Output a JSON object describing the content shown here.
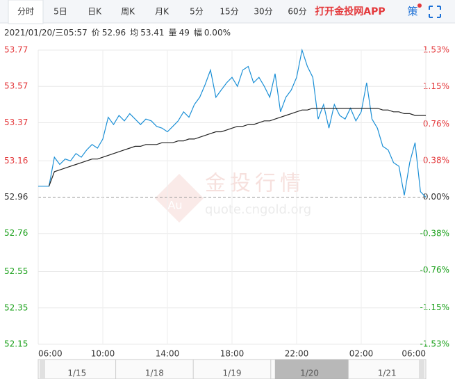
{
  "toolbar": {
    "tabs": [
      "分时",
      "5日",
      "日K",
      "周K",
      "月K",
      "5分",
      "15分",
      "30分",
      "60分"
    ],
    "active_tab": 0,
    "app_link": "打开金投网APP",
    "strategy": "策"
  },
  "info": {
    "datetime": "2021/01/20/三05:57",
    "price_label": "价",
    "price": 52.96,
    "avg_label": "均",
    "avg": 53.41,
    "volume_label": "量",
    "volume": 49,
    "change_label": "幅",
    "change": "0.00%"
  },
  "watermark": {
    "brand": "金投行情",
    "url": "quote.cngold.org",
    "logo": "Au"
  },
  "chart_data": {
    "type": "line",
    "categories": [
      "06:00",
      null,
      null,
      null,
      null,
      null,
      null,
      null,
      null,
      null,
      null,
      null,
      "10:00",
      null,
      null,
      null,
      null,
      null,
      null,
      null,
      null,
      null,
      null,
      null,
      "14:00",
      null,
      null,
      null,
      null,
      null,
      null,
      null,
      null,
      null,
      null,
      null,
      "18:00",
      null,
      null,
      null,
      null,
      null,
      null,
      null,
      null,
      null,
      null,
      null,
      "22:00",
      null,
      null,
      null,
      null,
      null,
      null,
      null,
      null,
      null,
      null,
      null,
      "02:00",
      null,
      null,
      null,
      null,
      null,
      null,
      null,
      null,
      null,
      null,
      null,
      "06:00"
    ],
    "series": [
      {
        "color": "#1a8fd6",
        "values": [
          53.02,
          53.02,
          53.02,
          53.18,
          53.14,
          53.17,
          53.16,
          53.2,
          53.18,
          53.22,
          53.25,
          53.23,
          53.28,
          53.4,
          53.36,
          53.41,
          53.38,
          53.42,
          53.39,
          53.36,
          53.39,
          53.38,
          53.35,
          53.34,
          53.32,
          53.35,
          53.38,
          53.43,
          53.4,
          53.47,
          53.51,
          53.58,
          53.66,
          53.51,
          53.55,
          53.59,
          53.62,
          53.57,
          53.66,
          53.68,
          53.59,
          53.62,
          53.57,
          53.51,
          53.64,
          53.43,
          53.51,
          53.55,
          53.62,
          53.77,
          53.68,
          53.62,
          53.39,
          53.47,
          53.34,
          53.47,
          53.41,
          53.39,
          53.45,
          53.38,
          53.43,
          53.59,
          53.39,
          53.34,
          53.24,
          53.22,
          53.15,
          53.13,
          52.97,
          53.15,
          53.26,
          52.99,
          52.96
        ]
      },
      {
        "color": "#222222",
        "values": [
          null,
          null,
          53.02,
          53.1,
          53.11,
          53.12,
          53.13,
          53.14,
          53.15,
          53.16,
          53.17,
          53.17,
          53.18,
          53.19,
          53.2,
          53.21,
          53.22,
          53.23,
          53.24,
          53.24,
          53.25,
          53.25,
          53.25,
          53.26,
          53.26,
          53.26,
          53.27,
          53.27,
          53.28,
          53.28,
          53.29,
          53.3,
          53.31,
          53.32,
          53.32,
          53.33,
          53.34,
          53.35,
          53.35,
          53.36,
          53.36,
          53.37,
          53.38,
          53.38,
          53.39,
          53.4,
          53.41,
          53.42,
          53.43,
          53.44,
          53.44,
          53.45,
          53.45,
          53.45,
          53.45,
          53.45,
          53.45,
          53.45,
          53.45,
          53.45,
          53.45,
          53.45,
          53.45,
          53.45,
          53.44,
          53.44,
          53.43,
          53.43,
          53.42,
          53.42,
          53.41,
          53.41,
          53.41
        ]
      }
    ],
    "ylim": [
      52.15,
      53.77
    ],
    "yticks": [
      53.77,
      53.57,
      53.37,
      53.16,
      52.96,
      52.76,
      52.55,
      52.35,
      52.15
    ],
    "y2lim": [
      -1.53,
      1.53
    ],
    "y2ticks": [
      {
        "value": 1.53,
        "label": "1.53%"
      },
      {
        "value": 1.15,
        "label": "1.15%"
      },
      {
        "value": 0.76,
        "label": "0.76%"
      },
      {
        "value": 0.38,
        "label": "0.38%"
      },
      {
        "value": 0,
        "label": "0.00%"
      },
      {
        "value": -0.38,
        "label": "-0.38%"
      },
      {
        "value": -0.76,
        "label": "-0.76%"
      },
      {
        "value": -1.15,
        "label": "-1.15%"
      },
      {
        "value": -1.53,
        "label": "-1.53%"
      }
    ],
    "grid": true,
    "up_color": "#e4393c",
    "down_color": "#1aa01a",
    "flat_color": "#333333"
  },
  "navigator": {
    "dates": [
      "1/15",
      "1/18",
      "1/19",
      "1/20",
      "1/21"
    ],
    "selected": 3
  }
}
